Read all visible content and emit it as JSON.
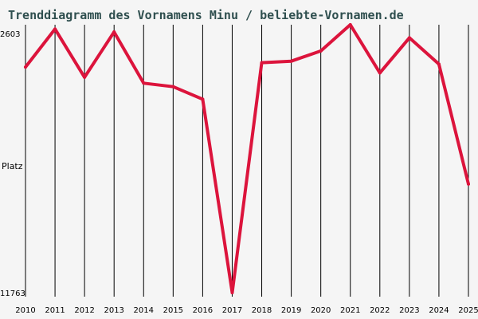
{
  "colors": {
    "background": "#f5f5f5",
    "title": "#2f4f4f",
    "line": "#dc143c",
    "grid": "#000000",
    "text": "#000000"
  },
  "chart_data": {
    "type": "line",
    "title": "Trenddiagramm des Vornamens Minu / beliebte-Vornamen.de",
    "ylabel": "Platz",
    "y_axis_inverted": true,
    "ylim": [
      2603,
      11763
    ],
    "y_tick_labels": [
      "2603",
      "11763"
    ],
    "grid": "vertical",
    "x": [
      "2010",
      "2011",
      "2012",
      "2013",
      "2014",
      "2015",
      "2016",
      "2017",
      "2018",
      "2019",
      "2020",
      "2021",
      "2022",
      "2023",
      "2024",
      "2025"
    ],
    "series": [
      {
        "values": [
          4050,
          2750,
          4400,
          2850,
          4600,
          4720,
          5150,
          11763,
          3900,
          3850,
          3500,
          2603,
          4250,
          3050,
          3950,
          8050
        ]
      }
    ]
  }
}
